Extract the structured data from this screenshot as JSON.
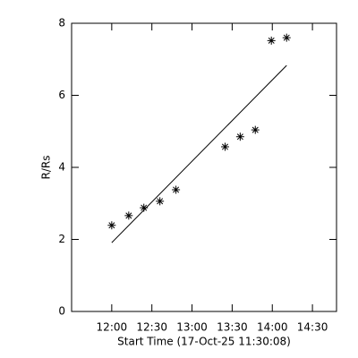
{
  "chart_data": {
    "type": "scatter",
    "xlabel": "Start Time (17-Oct-25 11:30:08)",
    "ylabel": "R/Rs",
    "x": [
      30,
      42.7,
      54,
      66,
      78,
      114.7,
      126,
      137.3,
      149.3,
      160.7
    ],
    "values": [
      2.39,
      2.66,
      2.88,
      3.06,
      3.38,
      4.57,
      4.85,
      5.04,
      7.52,
      7.6
    ],
    "color": "#000000",
    "fit": {
      "x": [
        30,
        160.7
      ],
      "values": [
        1.91,
        6.83
      ]
    },
    "xlim": [
      0,
      198
    ],
    "xticks": [
      {
        "value": 30,
        "label": "12:00"
      },
      {
        "value": 60,
        "label": "12:30"
      },
      {
        "value": 90,
        "label": "13:00"
      },
      {
        "value": 120,
        "label": "13:30"
      },
      {
        "value": 150,
        "label": "14:00"
      },
      {
        "value": 180,
        "label": "14:30"
      }
    ],
    "ylim": [
      0,
      8
    ],
    "yticks": [
      0,
      2,
      4,
      6,
      8
    ]
  }
}
